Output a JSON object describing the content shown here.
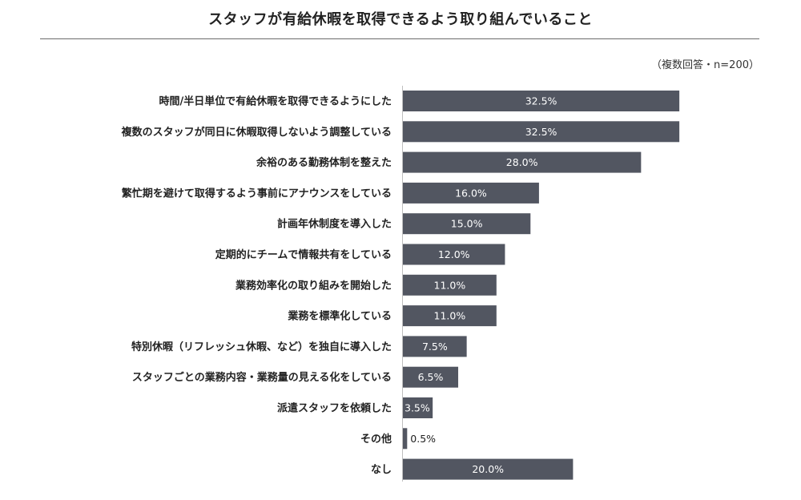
{
  "chart_data": {
    "type": "bar",
    "orientation": "horizontal",
    "title": "スタッフが有給休暇を取得できるよう取り組んでいること",
    "note": "（複数回答・n=200）",
    "value_suffix": "%",
    "categories": [
      "時間/半日単位で有給休暇を取得できるようにした",
      "複数のスタッフが同日に休暇取得しないよう調整している",
      "余裕のある勤務体制を整えた",
      "繁忙期を避けて取得するよう事前にアナウンスをしている",
      "計画年休制度を導入した",
      "定期的にチームで情報共有をしている",
      "業務効率化の取り組みを開始した",
      "業務を標準化している",
      "特別休暇（リフレッシュ休暇、など）を独自に導入した",
      "スタッフごとの業務内容・業務量の見える化をしている",
      "派遣スタッフを依頼した",
      "その他",
      "なし"
    ],
    "values": [
      32.5,
      32.5,
      28.0,
      16.0,
      15.0,
      12.0,
      11.0,
      11.0,
      7.5,
      6.5,
      3.5,
      0.5,
      20.0
    ],
    "labels": [
      "32.5%",
      "32.5%",
      "28.0%",
      "16.0%",
      "15.0%",
      "12.0%",
      "11.0%",
      "11.0%",
      "7.5%",
      "6.5%",
      "3.5%",
      "0.5%",
      "20.0%"
    ],
    "xlim": [
      0,
      42
    ],
    "grid": false,
    "legend": "none",
    "bar_color": "#525661"
  }
}
